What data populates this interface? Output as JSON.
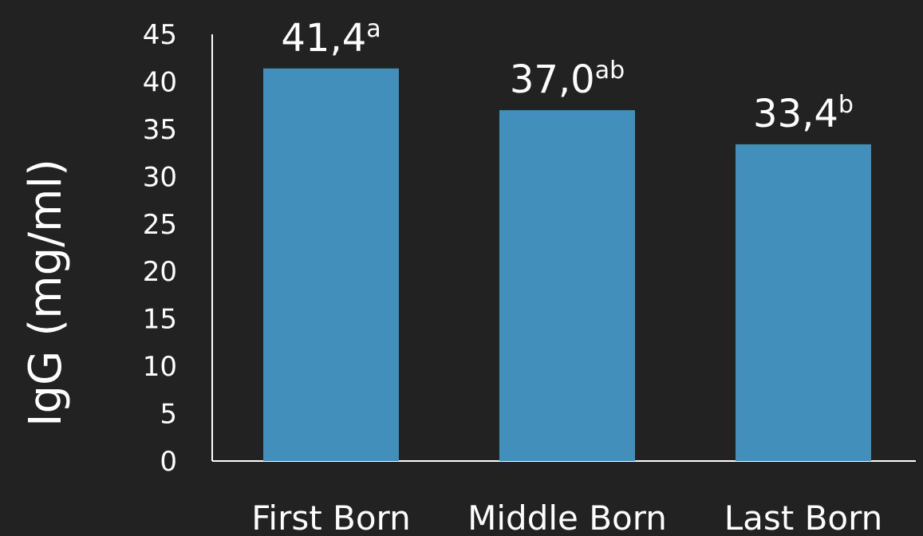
{
  "chart_data": {
    "type": "bar",
    "title": "",
    "xlabel": "",
    "ylabel": "IgG (mg/ml)",
    "categories": [
      "First Born",
      "Middle Born",
      "Last Born"
    ],
    "series": [
      {
        "values": [
          41.4,
          37.0,
          33.4
        ],
        "labels": [
          "41,4",
          "37,0",
          "33,4"
        ],
        "superscripts": [
          "a",
          "ab",
          "b"
        ]
      }
    ],
    "ylim": [
      0,
      45
    ],
    "yticks": [
      0,
      5,
      10,
      15,
      20,
      25,
      30,
      35,
      40,
      45
    ],
    "grid": false,
    "legend": "none",
    "colors": {
      "background": "#222222",
      "bar": "#418fba",
      "axis": "#ffffff",
      "text": "#ffffff"
    }
  }
}
